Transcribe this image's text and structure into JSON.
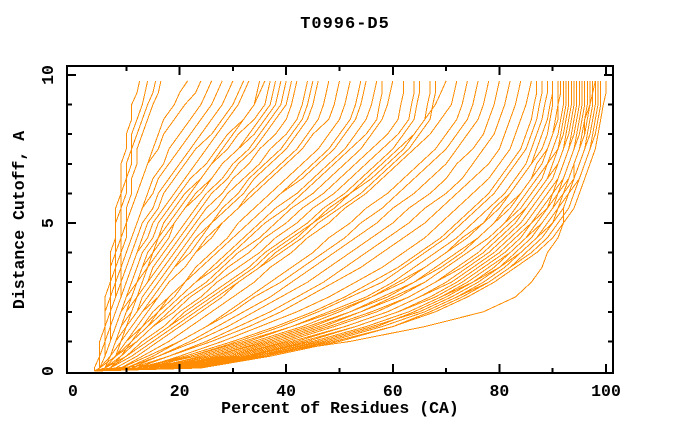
{
  "page": {
    "background": "#ffffff",
    "text_color": "#000000"
  },
  "chart_data": {
    "type": "line",
    "title": "T0996-D5",
    "xlabel": "Percent of Residues (CA)",
    "ylabel": "Distance Cutoff, A",
    "xlim": [
      0,
      100
    ],
    "ylim": [
      0,
      10
    ],
    "grid": false,
    "legend": false,
    "frame": "box-with-mirrored-inward-ticks",
    "axis_color": "#000000",
    "curve_color": "#ff8c00",
    "curve_count": 68,
    "x_ticks_major": [
      20,
      40,
      60,
      80,
      100
    ],
    "x_ticks_minor": [
      10,
      30,
      50,
      70,
      90
    ],
    "x_tick_labels": [
      {
        "value": 0,
        "label": "0"
      },
      {
        "value": 20,
        "label": "20"
      },
      {
        "value": 40,
        "label": "40"
      },
      {
        "value": 60,
        "label": "60"
      },
      {
        "value": 80,
        "label": "80"
      },
      {
        "value": 100,
        "label": "100"
      }
    ],
    "y_ticks_major": [
      5,
      10
    ],
    "y_ticks_minor": [
      1,
      2,
      3,
      4,
      6,
      7,
      8,
      9
    ],
    "y_tick_labels": [
      {
        "value": 0,
        "label": "0"
      },
      {
        "value": 5,
        "label": "5"
      },
      {
        "value": 10,
        "label": "10"
      }
    ],
    "x_origin": 4,
    "y_levels": [
      0.1,
      0.5,
      1,
      1.5,
      2,
      2.5,
      3,
      3.5,
      4,
      4.5,
      5,
      5.5,
      6,
      6.5,
      7,
      7.5,
      8,
      8.5,
      9,
      9.4,
      9.8
    ],
    "curves": [
      [
        4,
        5,
        5,
        6,
        6,
        6,
        7,
        7,
        7,
        8,
        8,
        8,
        9,
        9,
        9,
        10,
        10,
        11,
        11,
        12,
        12.5
      ],
      [
        5,
        5,
        6,
        6,
        6,
        7,
        7,
        7,
        8,
        8,
        8,
        9,
        9,
        10,
        10,
        11,
        11,
        12,
        13,
        13.5,
        14
      ],
      [
        5,
        5,
        6,
        6,
        7,
        7,
        7,
        8,
        8,
        9,
        9,
        9,
        10,
        10,
        11,
        11,
        12,
        13,
        14,
        15,
        15.5
      ],
      [
        5,
        6,
        6,
        7,
        7,
        7,
        8,
        8,
        9,
        9,
        10,
        10,
        11,
        11,
        12,
        12,
        13,
        14,
        15,
        16,
        16.5
      ],
      [
        5,
        6,
        6,
        7,
        7,
        8,
        8,
        9,
        9,
        10,
        10,
        11,
        12,
        13,
        14,
        15,
        16,
        17,
        19,
        20,
        21.5
      ],
      [
        4,
        5,
        5,
        6,
        6,
        7,
        7,
        8,
        8,
        9,
        10,
        11,
        12,
        13,
        14,
        16,
        17,
        19,
        21,
        23,
        24
      ],
      [
        5,
        5,
        6,
        6,
        7,
        8,
        8,
        9,
        10,
        11,
        12,
        13,
        14,
        15,
        17,
        18,
        20,
        22,
        24,
        25,
        26
      ],
      [
        4,
        5,
        6,
        6,
        7,
        8,
        9,
        9,
        10,
        11,
        12,
        13,
        15,
        16,
        18,
        20,
        22,
        24,
        26,
        27,
        28
      ],
      [
        5,
        6,
        6,
        7,
        8,
        9,
        9,
        10,
        11,
        12,
        13,
        15,
        16,
        18,
        20,
        22,
        24,
        26,
        28,
        29,
        30
      ],
      [
        4,
        5,
        6,
        7,
        8,
        9,
        10,
        11,
        12,
        13,
        14,
        16,
        17,
        19,
        21,
        23,
        26,
        28,
        30,
        31,
        32
      ],
      [
        5,
        6,
        7,
        7,
        8,
        9,
        10,
        11,
        12,
        14,
        15,
        17,
        19,
        21,
        23,
        25,
        27,
        29,
        31,
        32,
        33
      ],
      [
        5,
        6,
        7,
        8,
        9,
        10,
        11,
        12,
        13,
        15,
        16,
        18,
        20,
        22,
        25,
        27,
        29,
        32,
        34,
        34.5,
        35
      ],
      [
        6,
        7,
        8,
        9,
        10,
        11,
        12,
        13,
        15,
        16,
        18,
        20,
        22,
        24,
        26,
        28,
        30,
        32,
        34,
        35,
        36
      ],
      [
        5,
        6,
        7,
        8,
        9,
        10,
        12,
        13,
        14,
        16,
        17,
        19,
        21,
        24,
        26,
        29,
        31,
        34,
        36,
        36.5,
        37
      ],
      [
        5,
        7,
        8,
        9,
        10,
        12,
        13,
        14,
        16,
        18,
        19,
        21,
        24,
        26,
        28,
        31,
        33,
        35,
        37,
        37.5,
        38
      ],
      [
        5,
        6,
        7,
        8,
        9,
        11,
        12,
        14,
        15,
        17,
        19,
        21,
        23,
        26,
        28,
        31,
        34,
        36,
        38,
        38.5,
        39
      ],
      [
        6,
        7,
        8,
        10,
        11,
        12,
        14,
        15,
        17,
        19,
        21,
        23,
        25,
        28,
        30,
        33,
        35,
        37,
        39,
        39.5,
        40
      ],
      [
        5,
        7,
        8,
        9,
        11,
        12,
        14,
        16,
        18,
        20,
        22,
        24,
        26,
        29,
        31,
        34,
        36,
        38,
        40,
        40.5,
        41
      ],
      [
        6,
        7,
        9,
        10,
        12,
        13,
        15,
        17,
        19,
        21,
        23,
        25,
        28,
        30,
        33,
        35,
        38,
        40,
        41,
        41.5,
        42
      ],
      [
        5,
        7,
        9,
        10,
        12,
        14,
        16,
        18,
        20,
        22,
        24,
        27,
        29,
        32,
        35,
        37,
        40,
        42,
        43,
        43.5,
        44
      ],
      [
        6,
        8,
        9,
        11,
        13,
        15,
        17,
        19,
        21,
        23,
        26,
        28,
        31,
        33,
        36,
        39,
        41,
        43,
        44,
        44.5,
        45
      ],
      [
        5,
        7,
        9,
        11,
        13,
        15,
        17,
        19,
        22,
        24,
        26,
        29,
        32,
        34,
        37,
        40,
        42,
        44,
        45,
        45.5,
        46
      ],
      [
        6,
        8,
        10,
        12,
        14,
        16,
        18,
        21,
        23,
        25,
        28,
        31,
        33,
        36,
        39,
        42,
        44,
        46,
        47,
        47.5,
        48
      ],
      [
        5,
        7,
        9,
        11,
        13,
        16,
        18,
        21,
        23,
        26,
        28,
        31,
        34,
        37,
        40,
        43,
        45,
        48,
        49,
        49.5,
        50
      ],
      [
        7,
        9,
        11,
        14,
        16,
        18,
        21,
        23,
        26,
        29,
        31,
        34,
        37,
        40,
        43,
        46,
        48,
        50,
        51,
        51.5,
        52
      ],
      [
        6,
        8,
        11,
        13,
        16,
        19,
        21,
        24,
        27,
        30,
        33,
        36,
        39,
        42,
        45,
        48,
        50,
        52,
        53,
        53.5,
        54
      ],
      [
        5,
        8,
        10,
        13,
        15,
        18,
        21,
        24,
        27,
        30,
        33,
        36,
        39,
        43,
        46,
        49,
        51,
        53,
        54,
        54.5,
        55
      ],
      [
        6,
        9,
        11,
        14,
        17,
        20,
        23,
        26,
        29,
        32,
        35,
        38,
        42,
        45,
        48,
        51,
        53,
        55,
        56,
        56.5,
        57
      ],
      [
        5,
        8,
        11,
        14,
        17,
        20,
        23,
        27,
        30,
        33,
        36,
        40,
        43,
        46,
        49,
        52,
        55,
        57,
        57.5,
        58,
        58
      ],
      [
        6,
        9,
        12,
        15,
        18,
        21,
        25,
        28,
        31,
        35,
        38,
        41,
        45,
        48,
        51,
        54,
        56,
        58,
        59,
        59.5,
        60
      ],
      [
        5,
        8,
        12,
        15,
        19,
        22,
        26,
        29,
        33,
        36,
        40,
        43,
        47,
        50,
        53,
        56,
        59,
        61,
        61.5,
        62,
        62
      ],
      [
        6,
        10,
        13,
        17,
        20,
        24,
        27,
        31,
        35,
        38,
        42,
        45,
        49,
        52,
        55,
        58,
        61,
        63,
        63.5,
        64,
        64
      ],
      [
        7,
        10,
        14,
        18,
        21,
        25,
        29,
        33,
        36,
        40,
        44,
        47,
        51,
        54,
        57,
        60,
        62,
        64,
        64.5,
        65,
        65
      ],
      [
        6,
        10,
        14,
        18,
        22,
        26,
        30,
        34,
        37,
        41,
        45,
        49,
        52,
        56,
        59,
        62,
        64,
        66,
        66.5,
        67,
        67
      ],
      [
        7,
        11,
        15,
        19,
        23,
        27,
        31,
        35,
        39,
        43,
        46,
        50,
        54,
        57,
        60,
        63,
        65,
        67,
        67.5,
        68,
        68
      ],
      [
        8,
        12,
        16,
        20,
        24,
        28,
        31,
        35,
        38,
        42,
        45,
        48,
        52,
        55,
        58,
        61,
        64,
        66,
        68,
        69,
        70
      ],
      [
        9,
        13,
        18,
        22,
        26,
        30,
        34,
        37,
        41,
        44,
        48,
        51,
        55,
        58,
        61,
        64,
        67,
        69,
        71,
        71.5,
        72
      ],
      [
        10,
        15,
        20,
        25,
        29,
        33,
        37,
        41,
        45,
        48,
        52,
        55,
        59,
        62,
        65,
        68,
        70,
        72,
        73,
        73.5,
        74
      ],
      [
        9,
        14,
        20,
        25,
        30,
        34,
        39,
        43,
        47,
        51,
        54,
        58,
        61,
        64,
        67,
        70,
        72,
        74,
        75,
        75.5,
        76
      ],
      [
        11,
        16,
        22,
        27,
        32,
        37,
        41,
        45,
        49,
        53,
        57,
        60,
        64,
        67,
        70,
        72,
        74,
        76,
        77,
        77.5,
        78
      ],
      [
        10,
        16,
        23,
        29,
        34,
        39,
        44,
        48,
        52,
        56,
        60,
        63,
        67,
        70,
        72,
        75,
        77,
        78,
        79,
        79.5,
        80
      ],
      [
        12,
        18,
        25,
        31,
        37,
        42,
        47,
        51,
        55,
        59,
        63,
        66,
        70,
        73,
        75,
        77,
        79,
        80,
        81,
        81.5,
        82
      ],
      [
        11,
        18,
        26,
        33,
        39,
        44,
        49,
        54,
        58,
        62,
        66,
        69,
        72,
        75,
        78,
        80,
        81,
        82,
        83,
        83.5,
        84
      ],
      [
        13,
        20,
        28,
        35,
        42,
        48,
        53,
        58,
        62,
        66,
        69,
        72,
        75,
        78,
        80,
        82,
        83,
        84,
        85,
        85.5,
        86
      ],
      [
        12,
        21,
        30,
        38,
        45,
        51,
        56,
        61,
        65,
        69,
        72,
        75,
        78,
        80,
        82,
        84,
        85,
        86,
        86.5,
        87,
        87
      ],
      [
        14,
        22,
        31,
        39,
        46,
        52,
        58,
        62,
        66,
        70,
        73,
        76,
        79,
        81,
        83,
        85,
        86,
        87,
        87.5,
        88,
        88
      ],
      [
        13,
        23,
        33,
        41,
        48,
        55,
        60,
        64,
        68,
        72,
        75,
        78,
        81,
        83,
        85,
        86,
        87,
        88,
        88.5,
        89,
        89
      ],
      [
        15,
        24,
        34,
        43,
        50,
        56,
        62,
        66,
        70,
        74,
        77,
        80,
        82,
        84,
        86,
        87,
        88,
        89,
        89.5,
        90,
        90
      ],
      [
        12,
        22,
        32,
        41,
        49,
        56,
        61,
        66,
        70,
        73,
        77,
        79,
        82,
        84,
        86,
        88,
        89,
        89.5,
        90,
        90,
        90
      ],
      [
        16,
        26,
        36,
        45,
        52,
        58,
        64,
        68,
        72,
        76,
        79,
        81,
        84,
        86,
        87,
        89,
        90,
        90.5,
        91,
        91,
        91
      ],
      [
        14,
        25,
        35,
        44,
        52,
        59,
        64,
        69,
        73,
        76,
        79,
        82,
        84,
        86,
        88,
        89,
        90,
        91,
        91,
        91.5,
        91.5
      ],
      [
        17,
        27,
        38,
        47,
        54,
        61,
        66,
        70,
        74,
        78,
        81,
        83,
        85,
        87,
        89,
        90,
        91,
        91.5,
        92,
        92,
        92
      ],
      [
        15,
        26,
        37,
        46,
        54,
        60,
        66,
        70,
        74,
        78,
        81,
        84,
        86,
        88,
        89,
        91,
        91.5,
        92,
        92.5,
        92.5,
        92.5
      ],
      [
        18,
        29,
        40,
        49,
        57,
        63,
        68,
        72,
        76,
        79,
        82,
        85,
        87,
        89,
        90,
        91,
        92,
        92.5,
        93,
        93,
        93
      ],
      [
        16,
        28,
        39,
        48,
        56,
        63,
        68,
        73,
        77,
        80,
        83,
        85,
        87,
        89,
        91,
        92,
        92.5,
        93,
        93.5,
        93.5,
        93.5
      ],
      [
        19,
        30,
        42,
        51,
        59,
        65,
        70,
        74,
        78,
        81,
        84,
        86,
        88,
        90,
        91,
        92,
        93,
        93.5,
        94,
        94,
        94
      ],
      [
        17,
        29,
        41,
        51,
        59,
        65,
        71,
        75,
        79,
        82,
        85,
        87,
        89,
        91,
        92,
        93,
        93.5,
        94,
        94.5,
        94.5,
        94.5
      ],
      [
        20,
        32,
        44,
        53,
        61,
        67,
        72,
        76,
        80,
        83,
        86,
        88,
        90,
        91,
        92,
        93,
        94,
        94.5,
        95,
        95,
        95
      ],
      [
        18,
        31,
        43,
        53,
        61,
        68,
        73,
        77,
        81,
        84,
        86,
        89,
        90,
        92,
        93,
        94,
        94.5,
        95,
        95.5,
        95.5,
        95.5
      ],
      [
        21,
        33,
        45,
        55,
        63,
        69,
        74,
        78,
        82,
        85,
        87,
        89,
        91,
        92,
        93,
        94,
        95,
        95.5,
        96,
        96,
        96
      ],
      [
        19,
        32,
        45,
        55,
        63,
        69,
        75,
        79,
        82,
        85,
        88,
        90,
        91,
        93,
        94,
        95,
        95.5,
        96,
        96.5,
        96.5,
        96.5
      ],
      [
        22,
        34,
        47,
        57,
        64,
        70,
        75,
        80,
        83,
        86,
        88,
        90,
        92,
        93,
        94,
        95,
        96,
        96.5,
        97,
        97,
        97
      ],
      [
        20,
        34,
        46,
        56,
        65,
        71,
        76,
        80,
        84,
        87,
        89,
        91,
        92,
        94,
        95,
        96,
        96.5,
        97,
        97.5,
        97.5,
        97.5
      ],
      [
        23,
        36,
        48,
        58,
        66,
        72,
        77,
        81,
        84,
        87,
        90,
        91,
        93,
        94,
        95,
        96,
        97,
        97.5,
        98,
        98,
        98
      ],
      [
        21,
        35,
        48,
        58,
        66,
        72,
        78,
        82,
        85,
        88,
        90,
        92,
        93,
        95,
        96,
        97,
        97.5,
        98,
        98.5,
        98.5,
        98.5
      ],
      [
        24,
        37,
        50,
        60,
        67,
        73,
        78,
        82,
        86,
        89,
        91,
        93,
        94,
        95,
        96,
        97,
        98,
        98.5,
        99,
        99,
        99
      ],
      [
        22,
        36,
        49,
        60,
        68,
        74,
        79,
        83,
        87,
        90,
        92,
        94,
        95,
        96,
        97,
        98,
        98.5,
        99,
        99.5,
        100,
        100
      ],
      [
        8,
        33,
        52,
        66,
        77,
        83,
        86,
        88,
        89,
        91,
        92,
        92,
        93,
        94,
        94,
        95,
        96,
        96,
        97,
        97.5,
        98
      ]
    ]
  }
}
